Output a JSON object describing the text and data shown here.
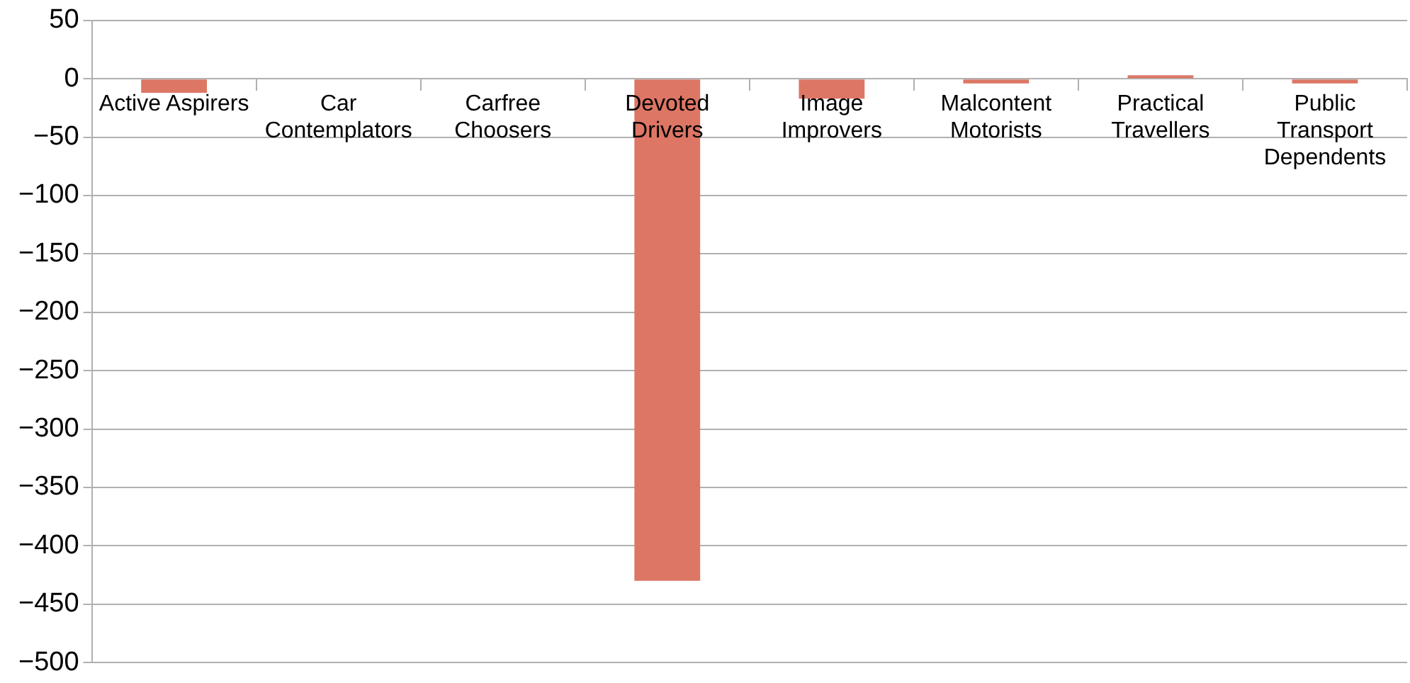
{
  "chart_data": {
    "type": "bar",
    "categories": [
      "Active Aspirers",
      "Car Contemplators",
      "Carfree Choosers",
      "Devoted Drivers",
      "Image Improvers",
      "Malcontent Motorists",
      "Practical Travellers",
      "Public Transport Dependents"
    ],
    "values": [
      -12,
      0,
      0,
      -430,
      -17,
      -4,
      3,
      -4
    ],
    "color": "#dd7665",
    "ylim": [
      -500,
      50
    ],
    "yticks": [
      -500,
      -450,
      -400,
      -350,
      -300,
      -250,
      -200,
      -150,
      -100,
      -50,
      0,
      50
    ],
    "grid": "y",
    "legend": false
  }
}
